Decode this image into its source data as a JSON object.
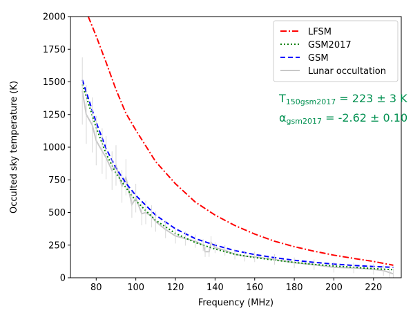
{
  "chart_data": {
    "type": "line",
    "xlabel": "Frequency (MHz)",
    "ylabel": "Occulted sky temperature (K)",
    "xlim": [
      67,
      234
    ],
    "ylim": [
      0,
      2000
    ],
    "xticks": [
      "80",
      "100",
      "120",
      "140",
      "160",
      "180",
      "200",
      "220"
    ],
    "yticks": [
      "0",
      "250",
      "500",
      "750",
      "1000",
      "1250",
      "1500",
      "1750",
      "2000"
    ],
    "xtick_values": [
      80,
      100,
      120,
      140,
      160,
      180,
      200,
      220
    ],
    "ytick_values": [
      0,
      250,
      500,
      750,
      1000,
      1250,
      1500,
      1750,
      2000
    ],
    "grid": false,
    "legend_position": "top-right",
    "series": [
      {
        "name": "LFSM",
        "style": "dashdot",
        "color": "#ff0000",
        "x": [
          76,
          80,
          85,
          90,
          95,
          100,
          110,
          120,
          130,
          140,
          150,
          160,
          170,
          180,
          190,
          200,
          210,
          220,
          230
        ],
        "y": [
          2000,
          1850,
          1650,
          1440,
          1260,
          1130,
          890,
          720,
          580,
          480,
          400,
          335,
          280,
          238,
          203,
          173,
          148,
          125,
          96
        ]
      },
      {
        "name": "GSM2017",
        "style": "dotted",
        "color": "#008000",
        "x": [
          73,
          80,
          85,
          90,
          95,
          100,
          110,
          120,
          130,
          140,
          150,
          160,
          170,
          180,
          190,
          200,
          210,
          220,
          230
        ],
        "y": [
          1480,
          1150,
          950,
          800,
          690,
          590,
          440,
          340,
          270,
          220,
          180,
          155,
          135,
          118,
          102,
          90,
          80,
          70,
          62
        ]
      },
      {
        "name": "GSM",
        "style": "dashed",
        "color": "#0000ff",
        "x": [
          73,
          80,
          85,
          90,
          95,
          100,
          110,
          120,
          130,
          140,
          150,
          160,
          170,
          180,
          190,
          200,
          210,
          220,
          230
        ],
        "y": [
          1515,
          1190,
          990,
          840,
          725,
          630,
          480,
          375,
          300,
          250,
          208,
          178,
          154,
          134,
          118,
          105,
          94,
          86,
          80
        ]
      },
      {
        "name": "Lunar occultation",
        "style": "solid",
        "color": "#c8c8c8",
        "x": [
          73,
          75,
          78,
          80,
          83,
          85,
          88,
          90,
          93,
          95,
          98,
          100,
          103,
          105,
          108,
          110,
          115,
          120,
          125,
          130,
          134,
          135,
          137,
          138,
          140,
          145,
          150,
          155,
          160,
          170,
          180,
          190,
          200,
          210,
          220,
          225,
          228,
          230
        ],
        "y": [
          1430,
          1250,
          1170,
          1050,
          970,
          920,
          820,
          860,
          700,
          770,
          560,
          610,
          490,
          500,
          470,
          430,
          370,
          320,
          300,
          280,
          250,
          200,
          200,
          270,
          230,
          210,
          180,
          165,
          160,
          140,
          115,
          100,
          80,
          75,
          65,
          55,
          40,
          30
        ]
      }
    ],
    "annotations": [
      {
        "prefix": "T",
        "sub": "150gsm2017",
        "suffix": " = 223 ± 3 K",
        "color": "#009050"
      },
      {
        "prefix": "α",
        "sub": "gsm2017",
        "suffix": " = -2.62 ± 0.10",
        "color": "#009050"
      }
    ]
  }
}
